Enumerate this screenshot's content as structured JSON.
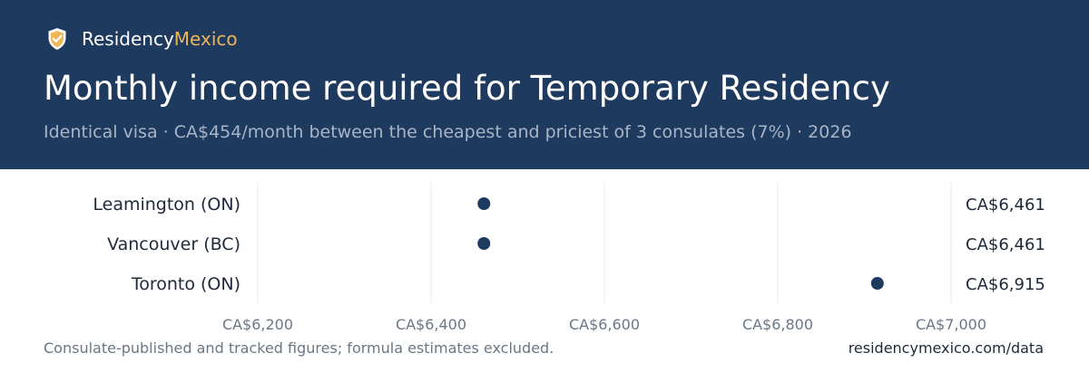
{
  "brand": {
    "name_part1": "Residency",
    "name_part2": "Mexico",
    "logo_icon": "shield-check-icon",
    "accent_color": "#f0b555"
  },
  "header": {
    "title": "Monthly income required for Temporary Residency",
    "subtitle": "Identical visa · CA$454/month between the cheapest and priciest of 3 consulates (7%) · 2026",
    "background_color": "#1e3a5f"
  },
  "chart_data": {
    "type": "scatter",
    "categories": [
      "Leamington (ON)",
      "Vancouver (BC)",
      "Toronto (ON)"
    ],
    "values": [
      6461,
      6461,
      6915
    ],
    "value_labels": [
      "CA$6,461",
      "CA$6,461",
      "CA$6,915"
    ],
    "xlim": [
      6200,
      7000
    ],
    "x_ticks": [
      6200,
      6400,
      6600,
      6800,
      7000
    ],
    "x_tick_labels": [
      "CA$6,200",
      "CA$6,400",
      "CA$6,600",
      "CA$6,800",
      "CA$7,000"
    ],
    "grid": true,
    "point_color": "#1e3a5f"
  },
  "footer": {
    "note": "Consulate-published and tracked figures; formula estimates excluded.",
    "source": "residencymexico.com/data"
  }
}
